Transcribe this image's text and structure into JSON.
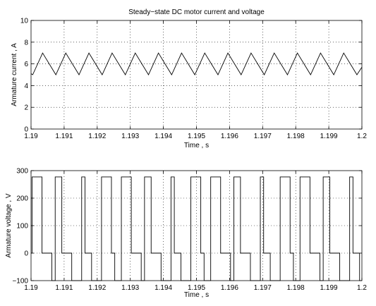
{
  "chart_data": [
    {
      "type": "line",
      "title": "Steady−state DC motor current and voltage",
      "xlabel": "Time , s",
      "ylabel": "Armature current , A",
      "xlim": [
        1.19,
        1.2
      ],
      "ylim": [
        0,
        10
      ],
      "xticks": [
        1.19,
        1.191,
        1.192,
        1.193,
        1.194,
        1.195,
        1.196,
        1.197,
        1.198,
        1.199,
        1.2
      ],
      "xtick_labels": [
        "1.19",
        "1.191",
        "1.192",
        "1.193",
        "1.194",
        "1.195",
        "1.196",
        "1.197",
        "1.198",
        "1.199",
        "1.2"
      ],
      "yticks": [
        0,
        2,
        4,
        6,
        8,
        10
      ],
      "ytick_labels": [
        "0",
        "2",
        "4",
        "6",
        "8",
        "10"
      ],
      "grid": true,
      "series_color": "#000000",
      "series": [
        {
          "x": [
            1.19,
            1.19005,
            1.19035,
            1.19075,
            1.19105,
            1.19145,
            1.19175,
            1.19215,
            1.19245,
            1.19285,
            1.19315,
            1.19355,
            1.19385,
            1.19425,
            1.19455,
            1.19495,
            1.19525,
            1.19565,
            1.19595,
            1.19635,
            1.19665,
            1.19705,
            1.19735,
            1.19775,
            1.19805,
            1.19845,
            1.19875,
            1.19915,
            1.19945,
            1.19985,
            1.2
          ],
          "y": [
            5.1,
            5.0,
            7.0,
            5.0,
            7.0,
            5.0,
            7.0,
            5.0,
            7.0,
            5.0,
            7.0,
            5.0,
            7.0,
            5.0,
            7.0,
            5.0,
            7.0,
            5.0,
            7.0,
            5.0,
            7.0,
            5.0,
            7.0,
            5.0,
            7.0,
            5.0,
            7.0,
            5.0,
            7.0,
            5.0,
            5.7
          ]
        }
      ]
    },
    {
      "type": "line",
      "title": "",
      "xlabel": "Time , s",
      "ylabel": "Armature voltage , V",
      "xlim": [
        1.19,
        1.2
      ],
      "ylim": [
        -100,
        300
      ],
      "xticks": [
        1.19,
        1.191,
        1.192,
        1.193,
        1.194,
        1.195,
        1.196,
        1.197,
        1.198,
        1.199,
        1.2
      ],
      "xtick_labels": [
        "1.19",
        "1.191",
        "1.192",
        "1.193",
        "1.194",
        "1.195",
        "1.196",
        "1.197",
        "1.198",
        "1.199",
        "1.2"
      ],
      "yticks": [
        -100,
        0,
        100,
        200,
        300
      ],
      "ytick_labels": [
        "−100",
        "0",
        "100",
        "200",
        "300"
      ],
      "grid": true,
      "series_color": "#000000",
      "series": [
        {
          "x": [
            1.19,
            1.19003,
            1.19003,
            1.19033,
            1.19033,
            1.19063,
            1.19063,
            1.19073,
            1.19073,
            1.19093,
            1.19093,
            1.19123,
            1.19123,
            1.19153,
            1.19153,
            1.19163,
            1.19163,
            1.19183,
            1.19183,
            1.19213,
            1.19213,
            1.19243,
            1.19243,
            1.19253,
            1.19253,
            1.19273,
            1.19273,
            1.19303,
            1.19303,
            1.19333,
            1.19333,
            1.19343,
            1.19343,
            1.19363,
            1.19363,
            1.19393,
            1.19393,
            1.19423,
            1.19423,
            1.19433,
            1.19433,
            1.19453,
            1.19453,
            1.19483,
            1.19483,
            1.19513,
            1.19513,
            1.19523,
            1.19523,
            1.19543,
            1.19543,
            1.19573,
            1.19573,
            1.19603,
            1.19603,
            1.19613,
            1.19613,
            1.19633,
            1.19633,
            1.19663,
            1.19663,
            1.19693,
            1.19693,
            1.19703,
            1.19703,
            1.19723,
            1.19723,
            1.19753,
            1.19753,
            1.19783,
            1.19783,
            1.19793,
            1.19793,
            1.19813,
            1.19813,
            1.19843,
            1.19843,
            1.19873,
            1.19873,
            1.19883,
            1.19883,
            1.19903,
            1.19903,
            1.19933,
            1.19933,
            1.19963,
            1.19963,
            1.19973,
            1.19973,
            1.19993,
            1.19993,
            1.2
          ],
          "y": [
            0,
            0,
            277,
            277,
            0,
            0,
            -100,
            -100,
            277,
            277,
            0,
            0,
            -100,
            -100,
            277,
            277,
            0,
            0,
            -100,
            -100,
            277,
            277,
            0,
            0,
            -100,
            -100,
            277,
            277,
            0,
            0,
            -100,
            -100,
            277,
            277,
            0,
            0,
            -100,
            -100,
            277,
            277,
            0,
            0,
            -100,
            -100,
            277,
            277,
            0,
            0,
            -100,
            -100,
            277,
            277,
            0,
            0,
            -100,
            -100,
            277,
            277,
            0,
            0,
            -100,
            -100,
            277,
            277,
            0,
            0,
            -100,
            -100,
            277,
            277,
            0,
            0,
            -100,
            -100,
            277,
            277,
            0,
            0,
            -100,
            -100,
            277,
            277,
            0,
            0,
            -100,
            -100,
            277,
            277,
            0,
            0,
            -100,
            -100
          ]
        }
      ]
    }
  ]
}
